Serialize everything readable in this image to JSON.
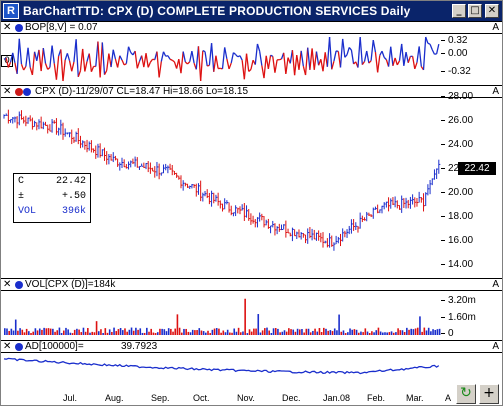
{
  "window": {
    "title": "BarChartTTD: CPX (D) COMPLETE PRODUCTION SERVICES Daily",
    "app_icon": "R",
    "minimize": "_",
    "maximize": "□",
    "close": "✕"
  },
  "bop_panel": {
    "close": "✕",
    "label": "BOP[8,V] = 0.07",
    "ticks": [
      "0.32",
      "0.00",
      "-0.32"
    ],
    "zero_marker": "0",
    "corner": "A"
  },
  "price_panel": {
    "close": "✕",
    "label": "CPX (D)-11/29/07 CL=18.47 Hi=18.66 Lo=18.15",
    "ticks": [
      "28.00",
      "26.00",
      "24.00",
      "22.00",
      "20.00",
      "18.00",
      "16.00",
      "14.00"
    ],
    "last_price": "22.42",
    "corner": "A",
    "info": {
      "c_label": "C",
      "c_value": "22.42",
      "chg_label": "±",
      "chg_value": "+.50",
      "vol_label": "VOL",
      "vol_value": "396k"
    }
  },
  "vol_panel": {
    "close": "✕",
    "label": "VOL[CPX (D)]=184k",
    "ticks": [
      "3.20m",
      "1.60m",
      "0"
    ],
    "corner": "A"
  },
  "ad_panel": {
    "close": "✕",
    "label": "AD[100000]=",
    "value": "39.7923",
    "corner": "A"
  },
  "xaxis": {
    "months": [
      "Jul.",
      "Aug.",
      "Sep.",
      "Oct.",
      "Nov.",
      "Dec.",
      "Jan.08",
      "Feb.",
      "Mar.",
      "A"
    ]
  },
  "side_buttons": {
    "refresh_icon": "↻",
    "add_icon": "+"
  },
  "colors": {
    "up": "#1a2ecc",
    "down": "#dd1111",
    "titlebar": "#0a246a"
  },
  "chart_data": {
    "type": "bar",
    "title": "CPX (D) COMPLETE PRODUCTION SERVICES Daily",
    "x": [
      "Jul.",
      "Aug.",
      "Sep.",
      "Oct.",
      "Nov.",
      "Dec.",
      "Jan.08",
      "Feb.",
      "Mar."
    ],
    "price_ylim": [
      13.5,
      28.0
    ],
    "price_close_approx": [
      26.6,
      25.5,
      22.8,
      21.8,
      19.0,
      17.2,
      15.8,
      18.8,
      19.5
    ],
    "last_close": 22.42,
    "bop_ylim": [
      -0.32,
      0.32
    ],
    "volume_ylim": [
      0,
      3.2
    ],
    "volume_unit": "m"
  }
}
